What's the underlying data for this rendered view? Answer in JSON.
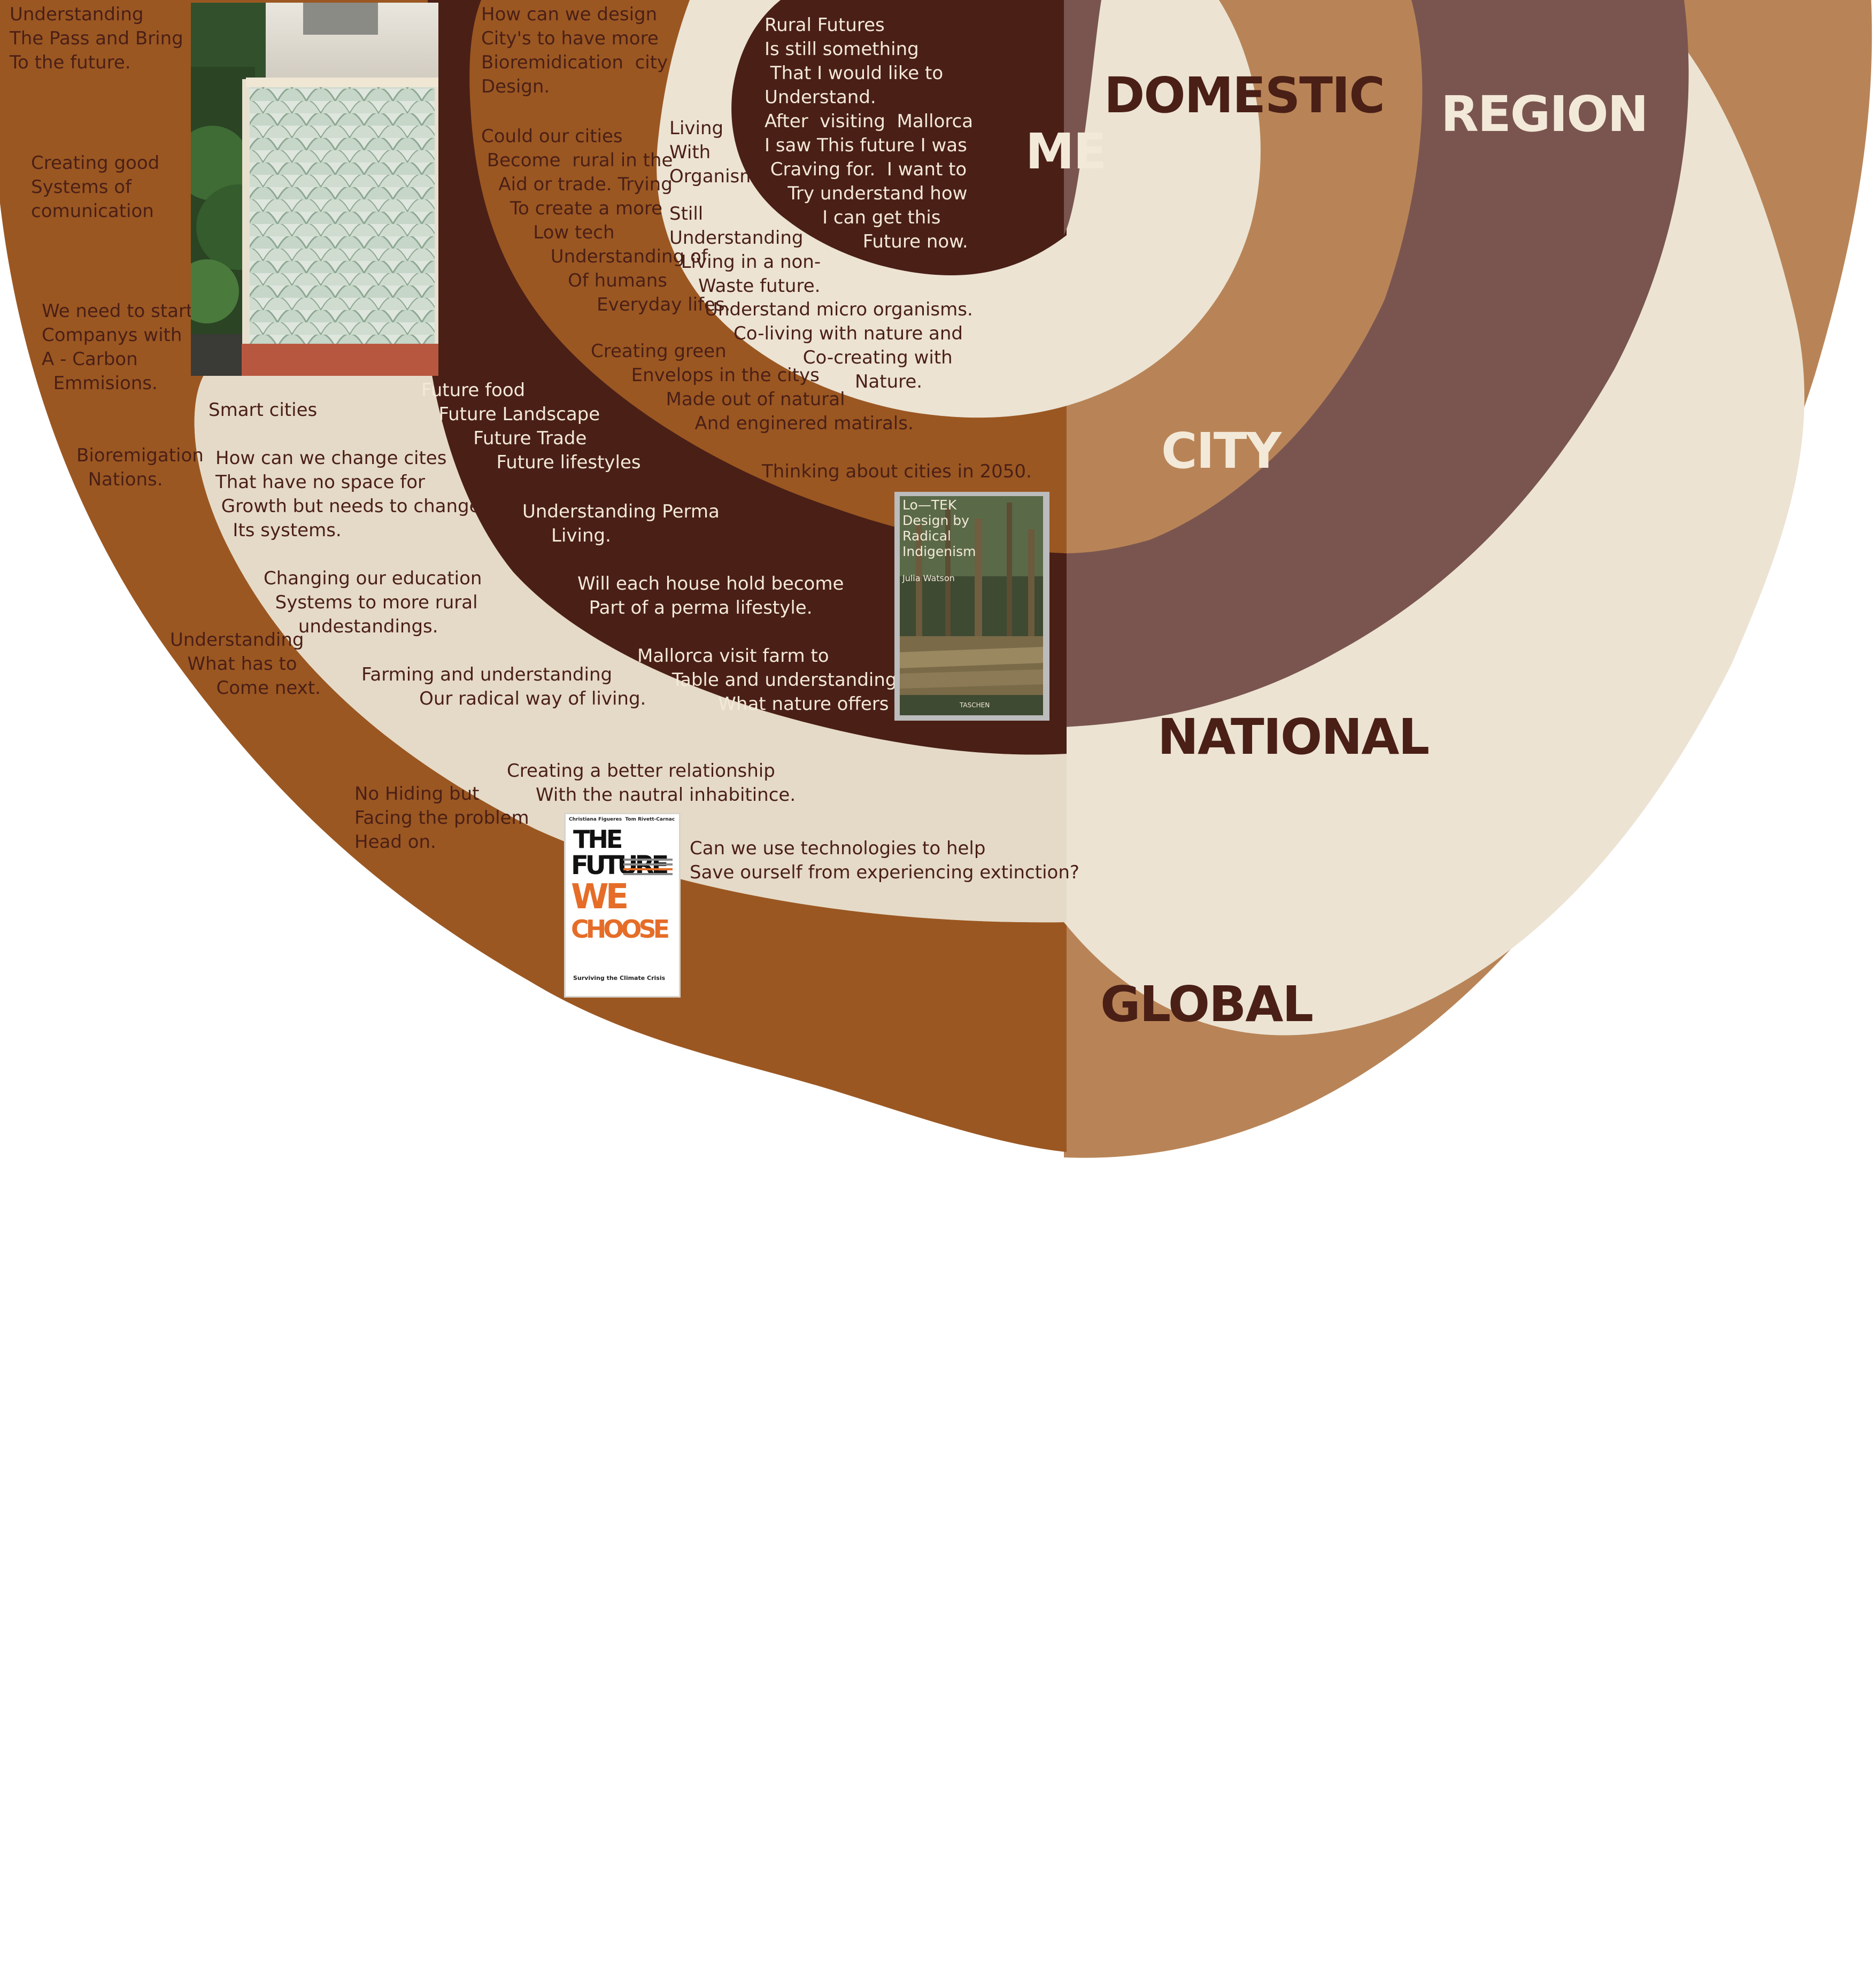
{
  "diagram": {
    "levels": {
      "me": "ME",
      "domestic": "DOMESTIC",
      "city": "CITY",
      "region": "REGION",
      "national": "NATIONAL",
      "global": "GLOBAL"
    },
    "notes": {
      "understanding_pass": "Understanding\nThe Pass and Bring\nTo the future.",
      "good_systems": "Creating good\nSystems of\ncomunication",
      "carbon": "We need to start\nCompanys with\nA - Carbon\n  Emmisions.",
      "smart_cities": "Smart cities",
      "bioremigation": "Bioremigation\n  Nations.",
      "change_cities": "How can we change cites\nThat have no space for\n Growth but needs to change\n   Its systems.",
      "education": "Changing our education\n  Systems to more rural\n      undestandings.",
      "what_next": "Understanding\n   What has to\n        Come next.",
      "farming": "Farming and understanding\n          Our radical way of living.",
      "no_hiding": "No Hiding but\nFacing the problem\nHead on.",
      "relationship": "Creating a better relationship\n     With the nautral inhabitince.",
      "technologies": "Can we use technologies to help\nSave ourself from experiencing extinction?",
      "design_cities": "How can we design\nCity's to have more\nBioremidication  city\nDesign.",
      "could_cities": "Could our cities\n Become  rural in the\n   Aid or trade. Trying\n     To create a more\n         Low tech\n            Understanding of\n               Of humans\n                    Everyday lifes.",
      "living_organisms": "Living\nWith\nOrganisms",
      "still_understanding": "Still\nUnderstanding\n  Living in a non-\n     Waste future.",
      "micro_organisms": "Understand micro organisms.\n     Co-living with nature and\n                 Co-creating with\n                          Nature.",
      "green_envelops": "Creating green\n       Envelops in the citys\n             Made out of natural\n                  And enginered matirals.",
      "future_list": "Future food\n   Future Landscape\n         Future Trade\n             Future lifestyles",
      "cities_2050": "Thinking about cities in 2050.",
      "perma_living": "Understanding Perma\n     Living.",
      "house_hold": "Will each house hold become\n  Part of a perma lifestyle.",
      "mallorca_farm": "Mallorca visit farm to\n      Table and understanding\n              What nature offers us.",
      "rural_futures": "Rural Futures\nIs still something\n That I would like to\nUnderstand.\nAfter  visiting  Mallorca\nI saw This future I was\n Craving for.  I want to\n    Try understand how\n          I can get this\n                 Future now."
    },
    "books": {
      "lotek": {
        "title": "Lo—TEK\nDesign by\nRadical\nIndigenism",
        "author": "Julia Watson",
        "publisher": "TASCHEN"
      },
      "future_we_choose": {
        "authors": "Christiana Figueres  Tom Rivett-Carnac",
        "line1": "THE",
        "line2": "FUTURE",
        "line3": "WE",
        "line4": "CHOOSE",
        "subtitle": "Surviving the Climate Crisis"
      }
    },
    "colors": {
      "dark_brown": "#4a1f16",
      "rust": "#9b5722",
      "tan": "#b88457",
      "cream": "#ece3d3",
      "mauve_brown": "#7a5550",
      "white": "#ffffff"
    }
  }
}
